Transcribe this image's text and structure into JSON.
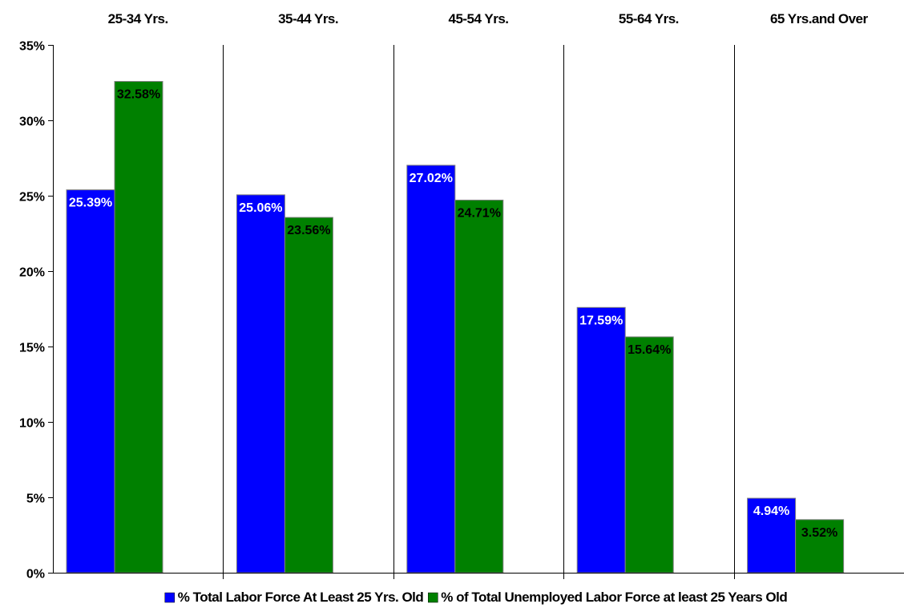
{
  "chart_data": {
    "type": "bar",
    "categories": [
      "25-34 Yrs.",
      "35-44 Yrs.",
      "45-54 Yrs.",
      "55-64 Yrs.",
      "65 Yrs.and Over"
    ],
    "series": [
      {
        "name": "% Total Labor Force At Least 25 Yrs. Old",
        "values": [
          25.39,
          25.06,
          27.02,
          17.59,
          4.94
        ],
        "labels": [
          "25.39%",
          "25.06%",
          "27.02%",
          "17.59%",
          "4.94%"
        ],
        "color": "#0000ff",
        "label_color": "#ffffff"
      },
      {
        "name": "% of Total Unemployed Labor Force at least 25 Years Old",
        "values": [
          32.58,
          23.56,
          24.71,
          15.64,
          3.52
        ],
        "labels": [
          "32.58%",
          "23.56%",
          "24.71%",
          "15.64%",
          "3.52%"
        ],
        "color": "#008000",
        "label_color": "#000000"
      }
    ],
    "ylim": [
      0,
      35
    ],
    "yticks": [
      0,
      5,
      10,
      15,
      20,
      25,
      30,
      35
    ],
    "ytick_labels": [
      "0%",
      "5%",
      "10%",
      "15%",
      "20%",
      "25%",
      "30%",
      "35%"
    ],
    "category_axis_position": "top",
    "legend_position": "bottom",
    "grid": false
  }
}
